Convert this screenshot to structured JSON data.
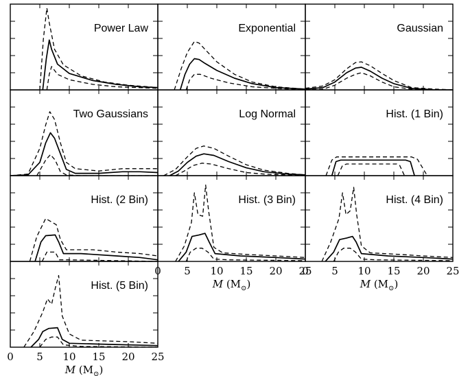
{
  "chart_data": {
    "type": "line",
    "layout": "grid 4 rows x 3 columns, 10 panels, shared x axis",
    "xlim": [
      0,
      25
    ],
    "xticks": [
      "0",
      "5",
      "10",
      "15",
      "20",
      "25"
    ],
    "xlabel_math": "M",
    "xlabel_unit": "(M",
    "xlabel_sub": "⊙",
    "xlabel_close": ")",
    "line_styles": {
      "median": "solid",
      "bounds": "dashed"
    },
    "panels": [
      {
        "title": "Power Law",
        "median": [
          [
            5.5,
            0
          ],
          [
            6.1,
            40
          ],
          [
            6.6,
            64
          ],
          [
            7.0,
            52
          ],
          [
            8,
            33
          ],
          [
            10,
            21
          ],
          [
            14,
            12
          ],
          [
            18,
            7
          ],
          [
            22,
            4
          ],
          [
            25,
            3
          ]
        ],
        "upper": [
          [
            5.0,
            0
          ],
          [
            5.6,
            65
          ],
          [
            6.2,
            105
          ],
          [
            6.6,
            86
          ],
          [
            7.5,
            52
          ],
          [
            9,
            32
          ],
          [
            12,
            18
          ],
          [
            16,
            10
          ],
          [
            20,
            6
          ],
          [
            25,
            3
          ]
        ],
        "lower": [
          [
            6.2,
            0
          ],
          [
            6.6,
            20
          ],
          [
            7.0,
            30
          ],
          [
            8,
            20
          ],
          [
            10,
            13
          ],
          [
            14,
            7
          ],
          [
            18,
            4
          ],
          [
            25,
            2
          ]
        ]
      },
      {
        "title": "Exponential",
        "median": [
          [
            3.8,
            0
          ],
          [
            4.6,
            20
          ],
          [
            5.4,
            33
          ],
          [
            6.2,
            40
          ],
          [
            7,
            39
          ],
          [
            8,
            34
          ],
          [
            10,
            25
          ],
          [
            13,
            15
          ],
          [
            16,
            8
          ],
          [
            20,
            3
          ],
          [
            25,
            1
          ]
        ],
        "upper": [
          [
            2.8,
            0
          ],
          [
            4,
            28
          ],
          [
            5,
            48
          ],
          [
            6.2,
            62
          ],
          [
            7,
            60
          ],
          [
            8,
            52
          ],
          [
            10,
            36
          ],
          [
            13,
            20
          ],
          [
            16,
            10
          ],
          [
            20,
            4
          ],
          [
            25,
            1
          ]
        ],
        "lower": [
          [
            4.8,
            0
          ],
          [
            5.4,
            13
          ],
          [
            6.2,
            20
          ],
          [
            7.2,
            20
          ],
          [
            9,
            15
          ],
          [
            12,
            9
          ],
          [
            16,
            4
          ],
          [
            20,
            2
          ],
          [
            25,
            0
          ]
        ]
      },
      {
        "title": "Gaussian",
        "median": [
          [
            0,
            1
          ],
          [
            3,
            3
          ],
          [
            5,
            10
          ],
          [
            7,
            22
          ],
          [
            8.5,
            28
          ],
          [
            9.5,
            29
          ],
          [
            11,
            24
          ],
          [
            13,
            15
          ],
          [
            15,
            8
          ],
          [
            18,
            2
          ],
          [
            22,
            0
          ],
          [
            25,
            0
          ]
        ],
        "upper": [
          [
            0,
            2
          ],
          [
            3,
            5
          ],
          [
            5,
            13
          ],
          [
            7,
            27
          ],
          [
            8.5,
            35
          ],
          [
            9.5,
            36
          ],
          [
            11,
            31
          ],
          [
            13,
            21
          ],
          [
            15,
            12
          ],
          [
            18,
            3
          ],
          [
            22,
            1
          ],
          [
            25,
            0
          ]
        ],
        "lower": [
          [
            0,
            0
          ],
          [
            3,
            1
          ],
          [
            5,
            6
          ],
          [
            7,
            15
          ],
          [
            8.5,
            20
          ],
          [
            9.5,
            22
          ],
          [
            11,
            18
          ],
          [
            13,
            10
          ],
          [
            15,
            4
          ],
          [
            18,
            1
          ],
          [
            25,
            0
          ]
        ]
      },
      {
        "title": "Two Gaussians",
        "median": [
          [
            0,
            0
          ],
          [
            3,
            1
          ],
          [
            5,
            17
          ],
          [
            6,
            42
          ],
          [
            6.8,
            55
          ],
          [
            7.5,
            48
          ],
          [
            8.5,
            28
          ],
          [
            9.5,
            8
          ],
          [
            11,
            3
          ],
          [
            15,
            3
          ],
          [
            19,
            5
          ],
          [
            22,
            5
          ],
          [
            25,
            4
          ]
        ],
        "upper": [
          [
            0,
            0
          ],
          [
            3,
            2
          ],
          [
            5,
            35
          ],
          [
            6,
            65
          ],
          [
            6.7,
            82
          ],
          [
            7.5,
            72
          ],
          [
            8.5,
            42
          ],
          [
            9.5,
            17
          ],
          [
            11,
            9
          ],
          [
            15,
            6
          ],
          [
            19,
            9
          ],
          [
            22,
            9
          ],
          [
            25,
            9
          ]
        ],
        "lower": [
          [
            4.5,
            0
          ],
          [
            6,
            20
          ],
          [
            6.8,
            27
          ],
          [
            7.6,
            20
          ],
          [
            8.5,
            5
          ],
          [
            9.5,
            1
          ],
          [
            12,
            0
          ],
          [
            25,
            0
          ]
        ]
      },
      {
        "title": "Log Normal",
        "median": [
          [
            2,
            0
          ],
          [
            3.5,
            6
          ],
          [
            5,
            17
          ],
          [
            6.5,
            25
          ],
          [
            7.8,
            28
          ],
          [
            9.5,
            26
          ],
          [
            12,
            18
          ],
          [
            15,
            10
          ],
          [
            18,
            5
          ],
          [
            22,
            2
          ],
          [
            25,
            1
          ]
        ],
        "upper": [
          [
            1,
            0
          ],
          [
            3,
            8
          ],
          [
            5,
            24
          ],
          [
            6.5,
            35
          ],
          [
            7.8,
            38
          ],
          [
            9.5,
            35
          ],
          [
            12,
            25
          ],
          [
            15,
            14
          ],
          [
            18,
            7
          ],
          [
            22,
            3
          ],
          [
            25,
            1
          ]
        ],
        "lower": [
          [
            3,
            0
          ],
          [
            4.5,
            6
          ],
          [
            6,
            13
          ],
          [
            7.5,
            16
          ],
          [
            9,
            15
          ],
          [
            12,
            9
          ],
          [
            15,
            4
          ],
          [
            18,
            2
          ],
          [
            22,
            1
          ],
          [
            25,
            0
          ]
        ]
      },
      {
        "title": "Hist. (1 Bin)",
        "median": [
          [
            4.5,
            0
          ],
          [
            5.2,
            18
          ],
          [
            6,
            20
          ],
          [
            17,
            20
          ],
          [
            17.8,
            18
          ],
          [
            18.5,
            0
          ]
        ],
        "upper": [
          [
            3.5,
            0
          ],
          [
            4.5,
            20
          ],
          [
            5.3,
            24
          ],
          [
            18,
            24
          ],
          [
            19,
            21
          ],
          [
            20.5,
            2
          ]
        ],
        "lower": [
          [
            5.5,
            0
          ],
          [
            6.3,
            13
          ],
          [
            7,
            15
          ],
          [
            15.5,
            15
          ],
          [
            16,
            13
          ],
          [
            16.8,
            0
          ]
        ]
      },
      {
        "title": "Hist. (2 Bin)",
        "median": [
          [
            4.2,
            0
          ],
          [
            5.2,
            25
          ],
          [
            6,
            33
          ],
          [
            7.6,
            34
          ],
          [
            8.2,
            25
          ],
          [
            9,
            10
          ],
          [
            12,
            10
          ],
          [
            18,
            7
          ],
          [
            22,
            5
          ],
          [
            25,
            2
          ]
        ],
        "upper": [
          [
            3.3,
            0
          ],
          [
            4.5,
            32
          ],
          [
            6,
            55
          ],
          [
            7.8,
            47
          ],
          [
            8.5,
            28
          ],
          [
            9.5,
            15
          ],
          [
            14,
            15
          ],
          [
            18,
            12
          ],
          [
            22,
            10
          ],
          [
            25,
            7
          ]
        ],
        "lower": [
          [
            5.4,
            0
          ],
          [
            6.2,
            12
          ],
          [
            7.6,
            12
          ],
          [
            8.3,
            2
          ],
          [
            10,
            2
          ],
          [
            18,
            1
          ],
          [
            25,
            0
          ]
        ]
      },
      {
        "title": "Hist. (3 Bin)",
        "median": [
          [
            3.5,
            0
          ],
          [
            4.8,
            12
          ],
          [
            5.8,
            32
          ],
          [
            7,
            34
          ],
          [
            8,
            36
          ],
          [
            8.7,
            25
          ],
          [
            9.7,
            10
          ],
          [
            14,
            7
          ],
          [
            20,
            5
          ],
          [
            25,
            3
          ]
        ],
        "upper": [
          [
            3,
            0
          ],
          [
            4.5,
            20
          ],
          [
            5.7,
            50
          ],
          [
            6.2,
            88
          ],
          [
            6.8,
            60
          ],
          [
            7.6,
            58
          ],
          [
            8.1,
            98
          ],
          [
            8.6,
            65
          ],
          [
            9.5,
            18
          ],
          [
            11,
            11
          ],
          [
            15,
            9
          ],
          [
            20,
            7
          ],
          [
            25,
            5
          ]
        ],
        "lower": [
          [
            4.8,
            0
          ],
          [
            5.5,
            12
          ],
          [
            6.5,
            17
          ],
          [
            7.5,
            17
          ],
          [
            8.5,
            12
          ],
          [
            9.5,
            3
          ],
          [
            12,
            2
          ],
          [
            25,
            1
          ]
        ]
      },
      {
        "title": "Hist. (4 Bin)",
        "median": [
          [
            3.4,
            0
          ],
          [
            4.8,
            12
          ],
          [
            5.8,
            28
          ],
          [
            7,
            30
          ],
          [
            8,
            32
          ],
          [
            8.6,
            25
          ],
          [
            9.5,
            10
          ],
          [
            14,
            7
          ],
          [
            20,
            5
          ],
          [
            25,
            3
          ]
        ],
        "upper": [
          [
            2.8,
            0
          ],
          [
            4.3,
            25
          ],
          [
            5.7,
            55
          ],
          [
            6.3,
            88
          ],
          [
            6.9,
            60
          ],
          [
            7.6,
            65
          ],
          [
            8.2,
            95
          ],
          [
            8.7,
            60
          ],
          [
            9.5,
            20
          ],
          [
            11,
            11
          ],
          [
            16,
            9
          ],
          [
            20,
            7
          ],
          [
            25,
            5
          ]
        ],
        "lower": [
          [
            4.8,
            0
          ],
          [
            5.6,
            12
          ],
          [
            6.5,
            17
          ],
          [
            7.6,
            17
          ],
          [
            8.5,
            12
          ],
          [
            9.5,
            3
          ],
          [
            12,
            2
          ],
          [
            25,
            1
          ]
        ]
      },
      {
        "title": "Hist. (5 Bin)",
        "median": [
          [
            3.5,
            0
          ],
          [
            4.8,
            10
          ],
          [
            5.5,
            20
          ],
          [
            6.5,
            24
          ],
          [
            8,
            25
          ],
          [
            8.8,
            10
          ],
          [
            10,
            5
          ],
          [
            15,
            4
          ],
          [
            20,
            3
          ],
          [
            25,
            2
          ]
        ],
        "upper": [
          [
            2.3,
            0
          ],
          [
            4,
            20
          ],
          [
            5.5,
            45
          ],
          [
            6.3,
            62
          ],
          [
            7,
            55
          ],
          [
            7.6,
            75
          ],
          [
            8.2,
            92
          ],
          [
            8.8,
            40
          ],
          [
            10,
            17
          ],
          [
            12,
            9
          ],
          [
            16,
            8
          ],
          [
            20,
            7
          ],
          [
            25,
            5
          ]
        ],
        "lower": [
          [
            5,
            0
          ],
          [
            6,
            10
          ],
          [
            7,
            13
          ],
          [
            8,
            13
          ],
          [
            9,
            3
          ],
          [
            12,
            1
          ],
          [
            25,
            0
          ]
        ]
      }
    ]
  }
}
